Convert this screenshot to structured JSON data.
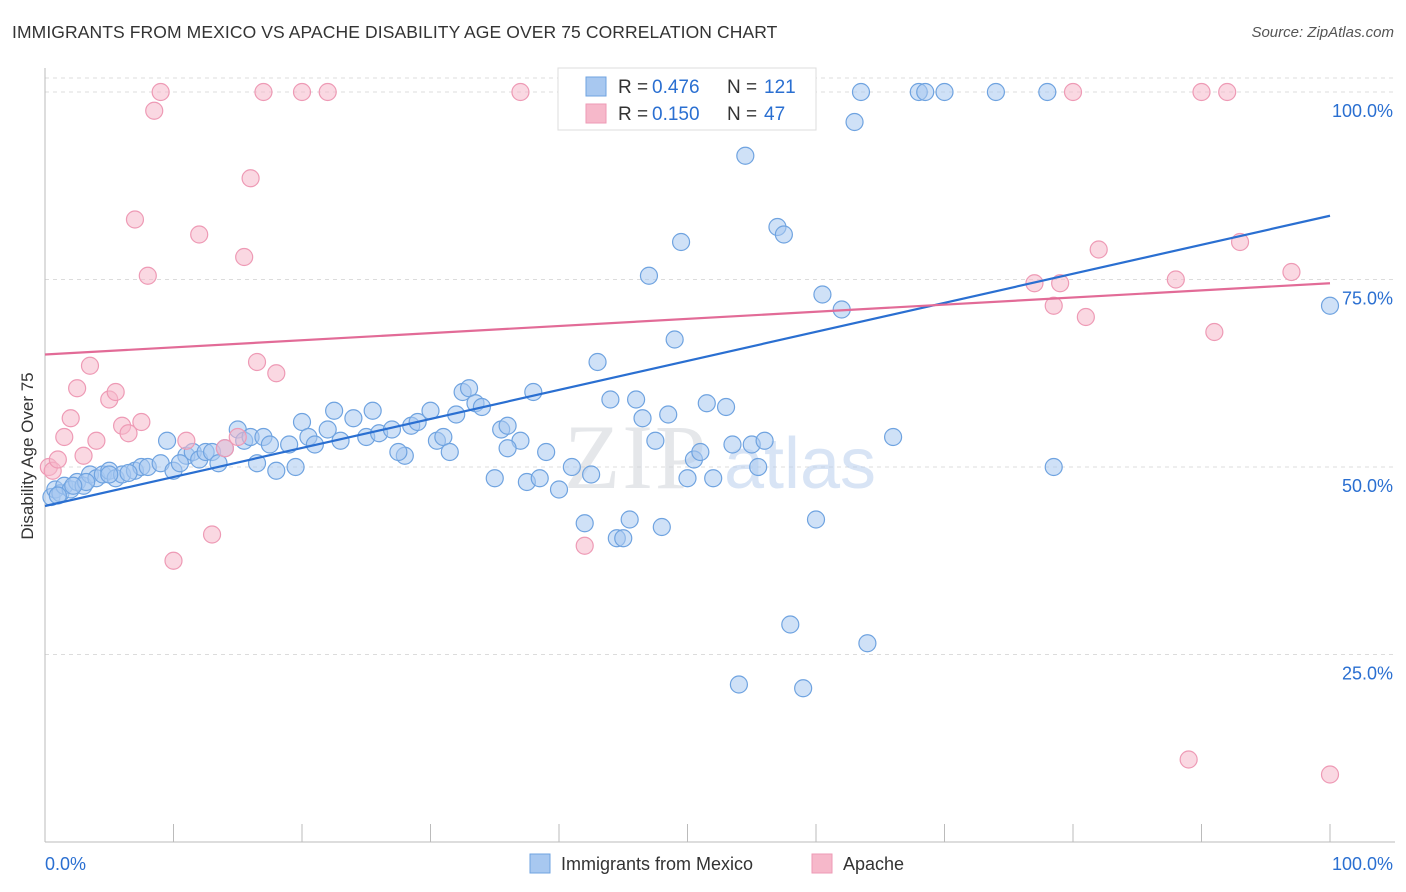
{
  "title": "IMMIGRANTS FROM MEXICO VS APACHE DISABILITY AGE OVER 75 CORRELATION CHART",
  "source": "Source: ZipAtlas.com",
  "watermark": {
    "zip": "ZIP",
    "atlas": "atlas"
  },
  "legend_box": {
    "rows": [
      {
        "r_label": "R =",
        "r_value": "0.476",
        "n_label": "N =",
        "n_value": "121",
        "color": "#a8c8f0"
      },
      {
        "r_label": "R =",
        "r_value": "0.150",
        "n_label": "N =",
        "n_value": "47",
        "color": "#f6b8ca"
      }
    ]
  },
  "bottom_legend": [
    {
      "label": "Immigrants from Mexico",
      "color": "#a8c8f0"
    },
    {
      "label": "Apache",
      "color": "#f6b8ca"
    }
  ],
  "chart_data": {
    "type": "scatter",
    "ylabel": "Disability Age Over 75",
    "x_tick_labels": {
      "left": "0.0%",
      "right": "100.0%"
    },
    "y_ticks": [
      {
        "value": 100,
        "label": "100.0%"
      },
      {
        "value": 75,
        "label": "75.0%"
      },
      {
        "value": 50,
        "label": "50.0%"
      },
      {
        "value": 25,
        "label": "25.0%"
      }
    ],
    "xlim": [
      0,
      100
    ],
    "ylim": [
      0,
      104
    ],
    "grid": true,
    "series": [
      {
        "name": "Immigrants from Mexico",
        "color": "#6fa3e0",
        "fill": "#a8c8f0",
        "trend": {
          "x": [
            0,
            100
          ],
          "y": [
            44.8,
            83.5
          ],
          "color": "#2a6fd1"
        },
        "points": [
          [
            0.5,
            46
          ],
          [
            0.8,
            47
          ],
          [
            1.2,
            46.5
          ],
          [
            1.5,
            47.5
          ],
          [
            2,
            47
          ],
          [
            2.5,
            48
          ],
          [
            3,
            47.5
          ],
          [
            3.5,
            49
          ],
          [
            4,
            48.5
          ],
          [
            4.5,
            49
          ],
          [
            5,
            49.5
          ],
          [
            5.5,
            48.5
          ],
          [
            6,
            49
          ],
          [
            7,
            49.5
          ],
          [
            7.5,
            50
          ],
          [
            8,
            50
          ],
          [
            9,
            50.5
          ],
          [
            9.5,
            53.5
          ],
          [
            10,
            49.5
          ],
          [
            11,
            51.5
          ],
          [
            11.5,
            52
          ],
          [
            12,
            51
          ],
          [
            12.5,
            52
          ],
          [
            13,
            52
          ],
          [
            13.5,
            50.5
          ],
          [
            14,
            52.5
          ],
          [
            15,
            55
          ],
          [
            15.5,
            53.5
          ],
          [
            16,
            54
          ],
          [
            16.5,
            50.5
          ],
          [
            17,
            54
          ],
          [
            17.5,
            53
          ],
          [
            18,
            49.5
          ],
          [
            19,
            53
          ],
          [
            19.5,
            50
          ],
          [
            20,
            56
          ],
          [
            20.5,
            54
          ],
          [
            21,
            53
          ],
          [
            22,
            55
          ],
          [
            22.5,
            57.5
          ],
          [
            23,
            53.5
          ],
          [
            24,
            56.5
          ],
          [
            25,
            54
          ],
          [
            25.5,
            57.5
          ],
          [
            26,
            54.5
          ],
          [
            27,
            55
          ],
          [
            28,
            51.5
          ],
          [
            28.5,
            55.5
          ],
          [
            29,
            56
          ],
          [
            30,
            57.5
          ],
          [
            30.5,
            53.5
          ],
          [
            31,
            54
          ],
          [
            31.5,
            52
          ],
          [
            32,
            57
          ],
          [
            32.5,
            60
          ],
          [
            33,
            60.5
          ],
          [
            33.5,
            58.5
          ],
          [
            34,
            58
          ],
          [
            35,
            48.5
          ],
          [
            35.5,
            55
          ],
          [
            36,
            55.5
          ],
          [
            37,
            53.5
          ],
          [
            37.5,
            48
          ],
          [
            38,
            60
          ],
          [
            38.5,
            48.5
          ],
          [
            39,
            52
          ],
          [
            40,
            47
          ],
          [
            41,
            50
          ],
          [
            42,
            42.5
          ],
          [
            42.5,
            49
          ],
          [
            43,
            64
          ],
          [
            44,
            59
          ],
          [
            44.5,
            40.5
          ],
          [
            45,
            40.5
          ],
          [
            45.5,
            43
          ],
          [
            46,
            59
          ],
          [
            46.5,
            56.5
          ],
          [
            47,
            75.5
          ],
          [
            47.5,
            53.5
          ],
          [
            48,
            42
          ],
          [
            48.5,
            57
          ],
          [
            49,
            67
          ],
          [
            50,
            48.5
          ],
          [
            50.5,
            51
          ],
          [
            51,
            52
          ],
          [
            51.5,
            58.5
          ],
          [
            52,
            48.5
          ],
          [
            53,
            58
          ],
          [
            53.5,
            53
          ],
          [
            54,
            21
          ],
          [
            54.5,
            91.5
          ],
          [
            55,
            53
          ],
          [
            55.5,
            50
          ],
          [
            56,
            53.5
          ],
          [
            57,
            82
          ],
          [
            57.5,
            81
          ],
          [
            58,
            29
          ],
          [
            59,
            20.5
          ],
          [
            60,
            43
          ],
          [
            60.5,
            73
          ],
          [
            62,
            71
          ],
          [
            63,
            96
          ],
          [
            63.5,
            100
          ],
          [
            64,
            26.5
          ],
          [
            66,
            54
          ],
          [
            68,
            100
          ],
          [
            68.5,
            100
          ],
          [
            70,
            100
          ],
          [
            74,
            100
          ],
          [
            78,
            100
          ],
          [
            78.5,
            50
          ],
          [
            100,
            71.5
          ],
          [
            49.5,
            80
          ],
          [
            36,
            52.5
          ],
          [
            27.5,
            52
          ],
          [
            5,
            49
          ],
          [
            3.2,
            48
          ],
          [
            2.2,
            47.5
          ],
          [
            1,
            46.2
          ],
          [
            6.5,
            49.2
          ],
          [
            10.5,
            50.5
          ]
        ]
      },
      {
        "name": "Apache",
        "color": "#ee9ab5",
        "fill": "#f6b8ca",
        "trend": {
          "x": [
            0,
            100
          ],
          "y": [
            65,
            74.5
          ],
          "color": "#e26b97"
        },
        "points": [
          [
            0.3,
            50
          ],
          [
            0.6,
            49.5
          ],
          [
            1,
            51
          ],
          [
            1.5,
            54
          ],
          [
            2,
            56.5
          ],
          [
            2.5,
            60.5
          ],
          [
            3,
            51.5
          ],
          [
            3.5,
            63.5
          ],
          [
            4,
            53.5
          ],
          [
            5,
            59
          ],
          [
            5.5,
            60
          ],
          [
            6,
            55.5
          ],
          [
            6.5,
            54.5
          ],
          [
            7,
            83
          ],
          [
            7.5,
            56
          ],
          [
            8,
            75.5
          ],
          [
            8.5,
            97.5
          ],
          [
            9,
            100
          ],
          [
            10,
            37.5
          ],
          [
            11,
            53.5
          ],
          [
            12,
            81
          ],
          [
            13,
            41
          ],
          [
            14,
            52.5
          ],
          [
            15,
            54
          ],
          [
            15.5,
            78
          ],
          [
            16,
            88.5
          ],
          [
            16.5,
            64
          ],
          [
            17,
            100
          ],
          [
            18,
            62.5
          ],
          [
            20,
            100
          ],
          [
            22,
            100
          ],
          [
            37,
            100
          ],
          [
            42,
            39.5
          ],
          [
            77,
            74.5
          ],
          [
            78.5,
            71.5
          ],
          [
            79,
            74.5
          ],
          [
            80,
            100
          ],
          [
            81,
            70
          ],
          [
            82,
            79
          ],
          [
            88,
            75
          ],
          [
            89,
            11
          ],
          [
            90,
            100
          ],
          [
            91,
            68
          ],
          [
            92,
            100
          ],
          [
            93,
            80
          ],
          [
            97,
            76
          ],
          [
            100,
            9
          ]
        ]
      }
    ]
  }
}
